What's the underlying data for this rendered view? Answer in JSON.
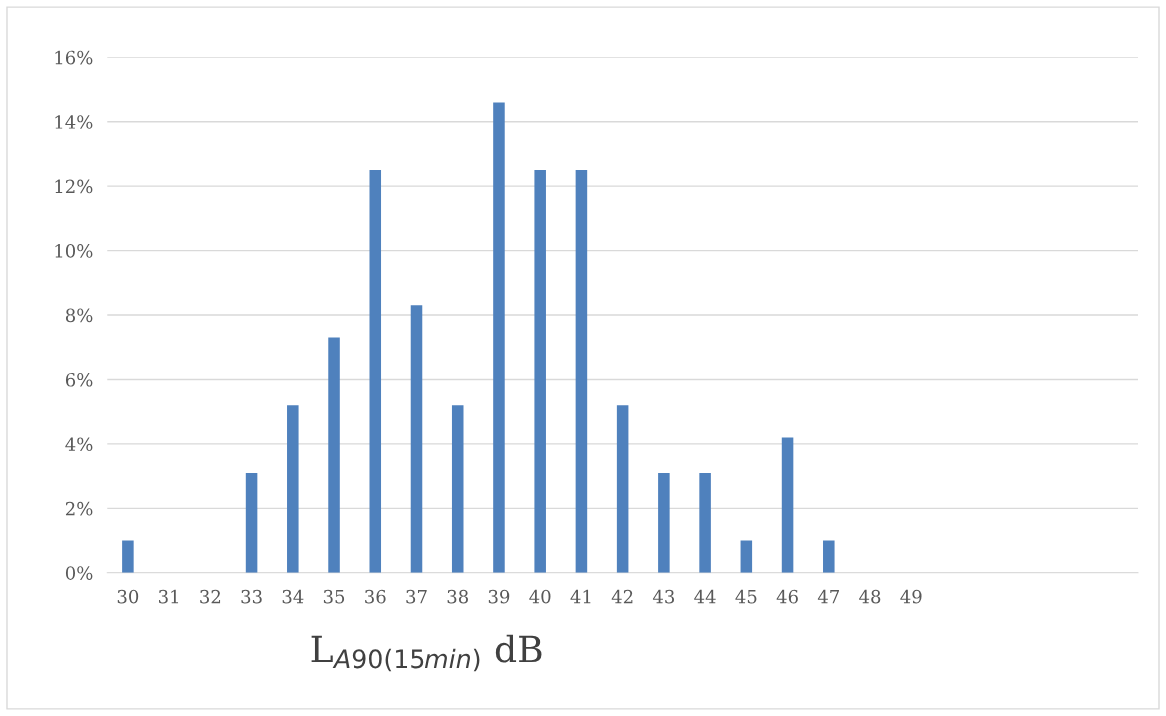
{
  "chart_data": {
    "type": "bar",
    "xlabel": "L$_{A90(15min)}$ dB",
    "categories": [
      "30",
      "31",
      "32",
      "33",
      "34",
      "35",
      "36",
      "37",
      "38",
      "39",
      "40",
      "41",
      "42",
      "43",
      "44",
      "45",
      "46",
      "47",
      "48",
      "49",
      null,
      null,
      null,
      null,
      null
    ],
    "values": [
      1.0,
      0,
      0,
      3.1,
      5.2,
      7.3,
      12.5,
      8.3,
      5.2,
      14.6,
      12.5,
      12.5,
      5.2,
      3.1,
      3.1,
      1.0,
      4.2,
      1.0,
      0,
      0,
      null,
      null,
      null,
      null,
      null
    ],
    "color": "#4f81bd",
    "ylim": [
      0,
      16
    ],
    "yticks": [
      {
        "value": 0,
        "label": "0%"
      },
      {
        "value": 2,
        "label": "2%"
      },
      {
        "value": 4,
        "label": "4%"
      },
      {
        "value": 6,
        "label": "6%"
      },
      {
        "value": 8,
        "label": "8%"
      },
      {
        "value": 10,
        "label": "10%"
      },
      {
        "value": 12,
        "label": "12%"
      },
      {
        "value": 14,
        "label": "14%"
      },
      {
        "value": 16,
        "label": "16%"
      }
    ],
    "grid": "y",
    "legend": false
  }
}
